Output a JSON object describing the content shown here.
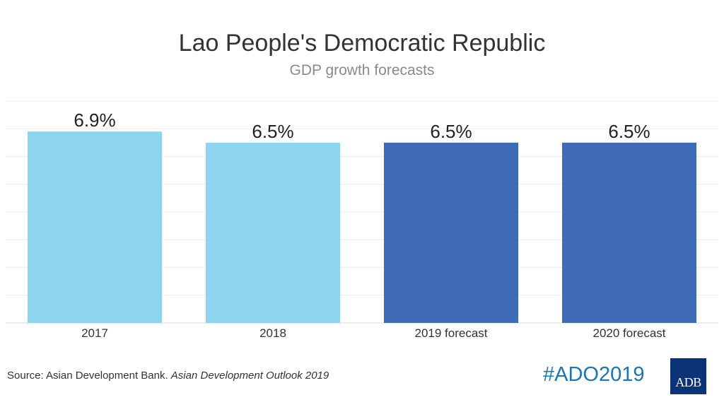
{
  "chart_data": {
    "type": "bar",
    "title": "Lao People's Democratic Republic",
    "subtitle": "GDP growth forecasts",
    "categories": [
      "2017",
      "2018",
      "2019 forecast",
      "2020 forecast"
    ],
    "values": [
      6.9,
      6.5,
      6.5,
      6.5
    ],
    "value_labels": [
      "6.9%",
      "6.5%",
      "6.5%",
      "6.5%"
    ],
    "bar_colors": [
      "#8fd4ef",
      "#8fd4ef",
      "#3f6bb6",
      "#3f6bb6"
    ],
    "ylim": [
      0,
      8
    ],
    "grid": true,
    "xlabel": "",
    "ylabel": ""
  },
  "footer": {
    "source_prefix": "Source: Asian Development Bank. ",
    "source_title": "Asian Development Outlook 2019",
    "hashtag": "#ADO2019",
    "logo_text": "ADB"
  },
  "colors": {
    "grid": "#ececec",
    "axis": "#d8d8d8",
    "text": "#333333"
  }
}
